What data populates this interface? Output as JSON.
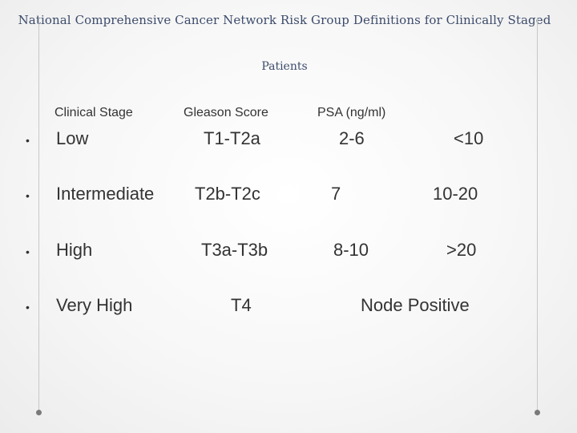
{
  "title": {
    "line1": "National Comprehensive Cancer Network Risk Group Definitions for Clinically Staged",
    "line2": "Patients"
  },
  "headers": {
    "clinical_stage": "Clinical Stage",
    "gleason_score": "Gleason Score",
    "psa": "PSA (ng/ml)"
  },
  "rows": [
    {
      "risk": "Low",
      "stage": "T1-T2a",
      "gleason": "2-6",
      "psa": "<10"
    },
    {
      "risk": "Intermediate",
      "stage": "T2b-T2c",
      "gleason": "7",
      "psa": "10-20"
    },
    {
      "risk": "High",
      "stage": "T3a-T3b",
      "gleason": "8-10",
      "psa": ">20"
    },
    {
      "risk": "Very High",
      "stage": "T4",
      "gleason": "",
      "psa": "Node Positive"
    }
  ],
  "bullet_glyph": "•"
}
